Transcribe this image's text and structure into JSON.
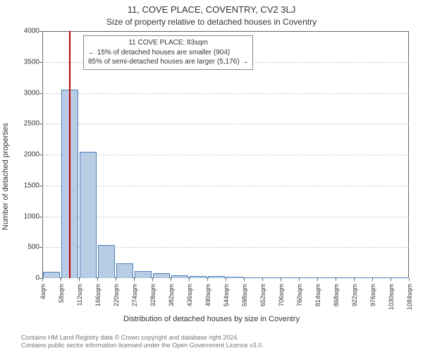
{
  "title": "11, COVE PLACE, COVENTRY, CV2 3LJ",
  "subtitle": "Size of property relative to detached houses in Coventry",
  "ylabel": "Number of detached properties",
  "xlabel": "Distribution of detached houses by size in Coventry",
  "chart": {
    "type": "bar",
    "ylim": [
      0,
      4000
    ],
    "ytick_step": 500,
    "yticks": [
      0,
      500,
      1000,
      1500,
      2000,
      2500,
      3000,
      3500,
      4000
    ],
    "xtick_labels": [
      "4sqm",
      "58sqm",
      "112sqm",
      "166sqm",
      "220sqm",
      "274sqm",
      "328sqm",
      "382sqm",
      "436sqm",
      "490sqm",
      "544sqm",
      "598sqm",
      "652sqm",
      "706sqm",
      "760sqm",
      "814sqm",
      "868sqm",
      "922sqm",
      "976sqm",
      "1030sqm",
      "1084sqm"
    ],
    "bar_values": [
      100,
      3050,
      2050,
      540,
      240,
      120,
      80,
      50,
      30,
      30,
      20,
      10,
      10,
      10,
      5,
      5,
      5,
      5,
      5,
      5
    ],
    "bar_fill": "#b8cce4",
    "bar_stroke": "#4f81bd",
    "grid_color": "#cccccc",
    "border_color": "#666666",
    "background": "#ffffff",
    "text_color": "#333333",
    "marker": {
      "x_sqm": 83,
      "value_sqm_min": 4,
      "value_sqm_max": 1084,
      "line_color": "#c00000"
    },
    "annotation": {
      "line1": "11 COVE PLACE: 83sqm",
      "line2": "← 15% of detached houses are smaller (904)",
      "line3": "85% of semi-detached houses are larger (5,176) →"
    }
  },
  "footer": {
    "line1": "Contains HM Land Registry data © Crown copyright and database right 2024.",
    "line2": "Contains public sector information licensed under the Open Government Licence v3.0."
  }
}
